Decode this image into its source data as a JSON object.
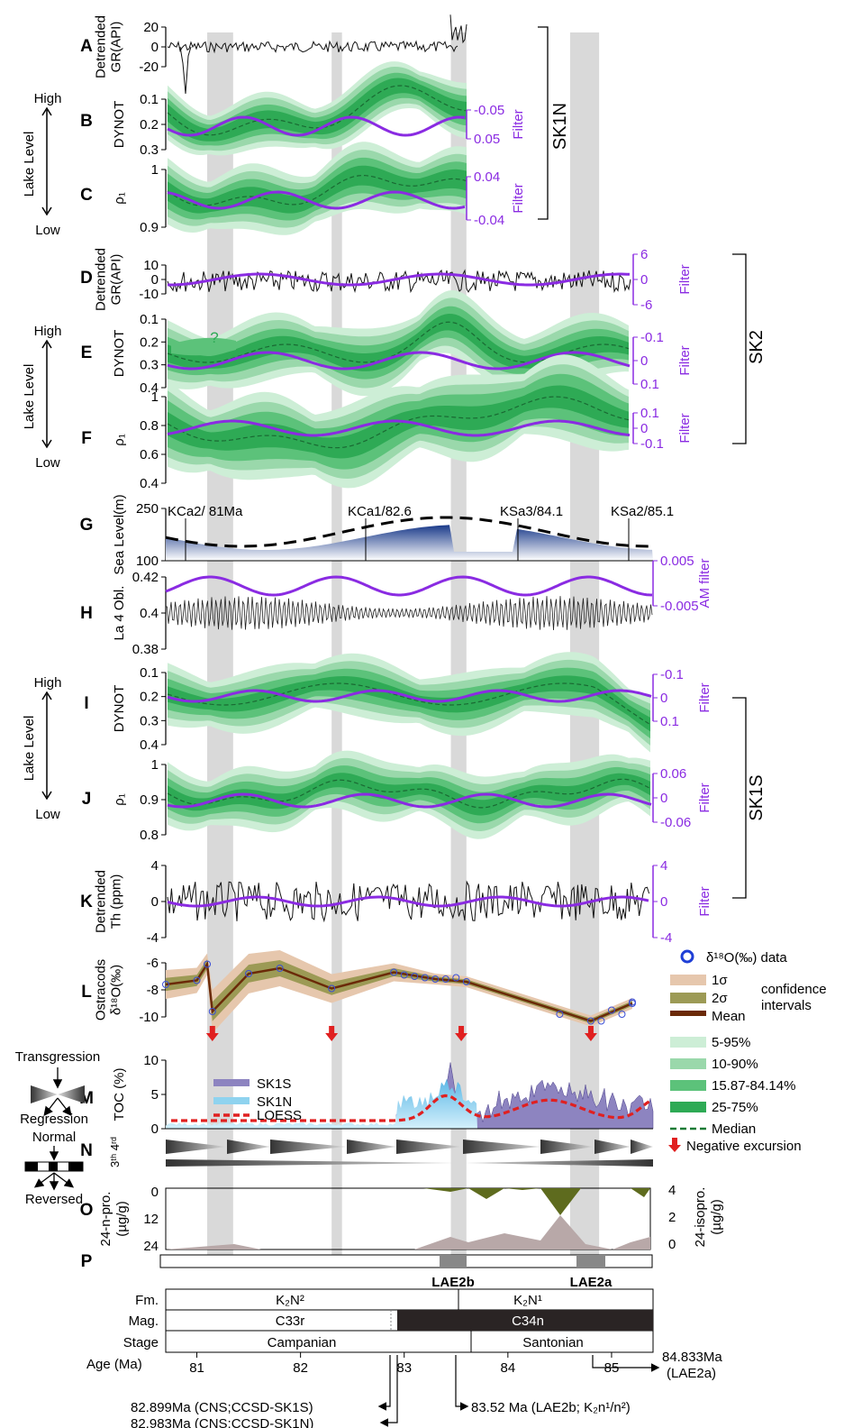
{
  "colors": {
    "purple": "#8a2be2",
    "green_dark": "#2eaa55",
    "green_mid": "#5cc27a",
    "green_light": "#9ad8ab",
    "green_pale": "#cdeed6",
    "grey_band": "#d9d9d9",
    "navy": "#1a3a8a",
    "tan": "#e6c7ad",
    "olive": "#9c9a55",
    "brown": "#6b2a08",
    "red": "#e02020",
    "sk1s_fill": "#8d84c0",
    "sk1n_fill": "#8fd3ef",
    "olive_fill": "#5e6b1e",
    "taupe_fill": "#b8a8a8"
  },
  "panels": {
    "A": {
      "letter": "A",
      "ylabel": [
        "Detrended",
        "GR(API)"
      ],
      "ticks": [
        "20",
        "0",
        "-20"
      ]
    },
    "B": {
      "letter": "B",
      "ylabel": [
        "DYNOT"
      ],
      "ticks": [
        "0.1",
        "0.2",
        "0.3"
      ],
      "rticks": [
        "-0.05",
        "0.05"
      ],
      "rlabel": "Filter"
    },
    "C": {
      "letter": "C",
      "ylabel": [
        "ρ₁"
      ],
      "ticks": [
        "1",
        "0.9"
      ],
      "rticks": [
        "0.04",
        "-0.04"
      ],
      "rlabel": "Filter"
    },
    "D": {
      "letter": "D",
      "ylabel": [
        "Detrended",
        "GR(API)"
      ],
      "ticks": [
        "10",
        "0",
        "-10"
      ],
      "rticks": [
        "6",
        "0",
        "-6"
      ],
      "rlabel": "Filter"
    },
    "E": {
      "letter": "E",
      "ylabel": [
        "DYNOT"
      ],
      "ticks": [
        "0.1",
        "0.2",
        "0.3",
        "0.4"
      ],
      "rticks": [
        "-0.1",
        "0",
        "0.1"
      ],
      "rlabel": "Filter",
      "question": "?"
    },
    "F": {
      "letter": "F",
      "ylabel": [
        "ρ₁"
      ],
      "ticks": [
        "1",
        "0.8",
        "0.6",
        "0.4"
      ],
      "rticks": [
        "0.1",
        "0",
        "-0.1"
      ],
      "rlabel": "Filter"
    },
    "G": {
      "letter": "G",
      "ylabel": [
        "Sea Level(m)"
      ],
      "ticks": [
        "250",
        "100"
      ],
      "events": [
        "KCa2/ 81Ma",
        "KCa1/82.6",
        "KSa3/84.1",
        "KSa2/85.1"
      ]
    },
    "H": {
      "letter": "H",
      "ylabel": [
        "La 4 Obl."
      ],
      "ticks": [
        "0.42",
        "0.4",
        "0.38"
      ],
      "rticks": [
        "0.005",
        "-0.005"
      ],
      "rlabel": "AM filter"
    },
    "I": {
      "letter": "I",
      "ylabel": [
        "DYNOT"
      ],
      "ticks": [
        "0.1",
        "0.2",
        "0.3",
        "0.4"
      ],
      "rticks": [
        "-0.1",
        "0",
        "0.1"
      ],
      "rlabel": "Filter"
    },
    "J": {
      "letter": "J",
      "ylabel": [
        "ρ₁"
      ],
      "ticks": [
        "1",
        "0.9",
        "0.8"
      ],
      "rticks": [
        "0.06",
        "0",
        "-0.06"
      ],
      "rlabel": "Filter"
    },
    "K": {
      "letter": "K",
      "ylabel": [
        "Detrended",
        "Th (ppm)"
      ],
      "ticks": [
        "4",
        "0",
        "-4"
      ],
      "rticks": [
        "4",
        "0",
        "-4"
      ],
      "rlabel": "Filter"
    },
    "L": {
      "letter": "L",
      "ylabel": [
        "Ostracods",
        "δ¹⁸O(‰)"
      ],
      "ticks": [
        "-6",
        "-8",
        "-10"
      ]
    },
    "M": {
      "letter": "M",
      "ylabel": [
        "TOC (%)"
      ],
      "ticks": [
        "10",
        "5",
        "0"
      ],
      "legend": [
        "SK1S",
        "SK1N",
        "LOESS"
      ]
    },
    "N": {
      "letter": "N",
      "ylabel": [
        "3ᵗʰ 4ʳᵈ"
      ]
    },
    "O": {
      "letter": "O",
      "ylabel": [
        "24-n-pro.",
        "(µg/g)"
      ],
      "ticks": [
        "0",
        "12",
        "24"
      ],
      "rticks": [
        "4",
        "2",
        "0"
      ],
      "rlabel": [
        "24-isopro.",
        "(µg/g)"
      ]
    },
    "P": {
      "letter": "P",
      "boxes": [
        "LAE2b",
        "LAE2a"
      ]
    }
  },
  "groups": {
    "sk1n": "SK1N",
    "sk2": "SK2",
    "sk1s": "SK1S"
  },
  "lake_level": {
    "label": "Lake Level",
    "high": "High",
    "low": "Low"
  },
  "legend": {
    "d18o": "δ¹⁸O(‰) data",
    "ci1": "1σ",
    "ci2": "2σ",
    "mean": "Mean",
    "ci_note": [
      "confidence",
      "intervals"
    ],
    "p1": "5-95%",
    "p2": "10-90%",
    "p3": "15.87-84.14%",
    "p4": "25-75%",
    "median": "Median",
    "neg": "Negative excursion"
  },
  "schematic": {
    "transgression": "Transgression",
    "regression": "Regression",
    "normal": "Normal",
    "reversed": "Reversed"
  },
  "strat": {
    "fm_label": "Fm.",
    "mag_label": "Mag.",
    "stage_label": "Stage",
    "age_label": "Age (Ma)",
    "fm": [
      "K₂N²",
      "K₂N¹"
    ],
    "mag": [
      "C33r",
      "C34n"
    ],
    "stage": [
      "Campanian",
      "Santonian"
    ],
    "ages": [
      "81",
      "82",
      "83",
      "84",
      "85"
    ],
    "ann1": "82.899Ma (CNS;CCSD-SK1S)",
    "ann2": "82.983Ma (CNS;CCSD-SK1N)",
    "ann3": "83.52 Ma (LAE2b; K₂n¹/n²)",
    "ann4": [
      "84.833Ma",
      "(LAE2a)"
    ]
  },
  "chart_data": {
    "type": "line",
    "x_axis": {
      "label": "Age (Ma)",
      "ticks": [
        81,
        82,
        83,
        84,
        85
      ],
      "range": [
        80.7,
        85.4
      ]
    },
    "grey_bands_ma": [
      [
        81.1,
        81.35
      ],
      [
        82.3,
        82.4
      ],
      [
        83.45,
        83.6
      ],
      [
        84.6,
        84.88
      ]
    ],
    "L_d18o_mean": [
      [
        80.7,
        -7.6
      ],
      [
        81.0,
        -7.3
      ],
      [
        81.1,
        -6.1
      ],
      [
        81.15,
        -9.6
      ],
      [
        81.5,
        -6.8
      ],
      [
        81.8,
        -6.4
      ],
      [
        82.3,
        -7.9
      ],
      [
        82.9,
        -6.7
      ],
      [
        83.3,
        -7.2
      ],
      [
        83.6,
        -7.4
      ],
      [
        84.8,
        -10.3
      ],
      [
        85.2,
        -9.0
      ]
    ],
    "L_d18o_range": [
      -10.5,
      -5.5
    ],
    "M_toc_range": [
      0,
      11
    ],
    "G_sealevel_range": [
      100,
      250
    ],
    "sea_level_events": [
      "KCa2/ 81Ma",
      "KCa1/82.6",
      "KSa3/84.1",
      "KSa2/85.1"
    ],
    "lae_ages_ma": {
      "LAE2b": 83.52,
      "LAE2a": 84.833
    },
    "cns_ages_ma": {
      "SK1S": 82.899,
      "SK1N": 82.983
    }
  }
}
